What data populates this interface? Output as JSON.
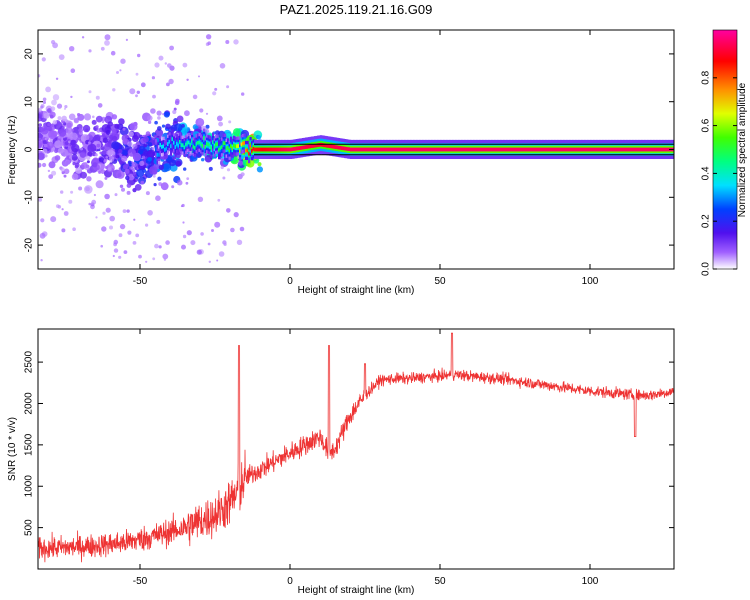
{
  "title": "PAZ1.2025.119.21.16.G09",
  "chart_data": [
    {
      "type": "heatmap",
      "xlabel": "Height of straight line (km)",
      "ylabel": "Frequency (Hz)",
      "xlim": [
        -84,
        128
      ],
      "ylim": [
        -25,
        25
      ],
      "xticks": [
        -50,
        0,
        50,
        100
      ],
      "yticks": [
        -20,
        -10,
        0,
        10,
        20
      ],
      "colorbar": {
        "label": "Normalized spectral amplitude",
        "range": [
          0,
          1
        ],
        "ticks": [
          0.0,
          0.2,
          0.4,
          0.6,
          0.8
        ],
        "colormap": "hsv-rainbow (white-purple-blue-cyan-green-yellow-orange-red-magenta)"
      },
      "ridge": {
        "description": "Dominant signal band centered near 0 Hz; dispersed speckle below -10 km",
        "x": [
          -84,
          -70,
          -60,
          -50,
          -40,
          -30,
          -20,
          -12,
          0,
          10,
          20,
          50,
          100,
          128
        ],
        "center_hz": [
          4,
          0,
          1,
          -2,
          1,
          1,
          0.5,
          0,
          0,
          1,
          0,
          0,
          0,
          0
        ],
        "peak_amplitude": [
          0.1,
          0.12,
          0.15,
          0.2,
          0.3,
          0.4,
          0.45,
          0.85,
          0.95,
          0.9,
          0.95,
          0.95,
          0.95,
          0.95
        ]
      }
    },
    {
      "type": "line",
      "xlabel": "Height of straight line (km)",
      "ylabel": "SNR (10 * v/v)",
      "xlim": [
        -84,
        128
      ],
      "ylim": [
        0,
        2900
      ],
      "xticks": [
        -50,
        0,
        50,
        100
      ],
      "yticks": [
        500,
        1000,
        1500,
        2000,
        2500
      ],
      "color": "#ee3333",
      "series": [
        {
          "x": [
            -84,
            -75,
            -65,
            -55,
            -45,
            -35,
            -25,
            -20,
            -18,
            -15,
            -10,
            -5,
            0,
            5,
            10,
            13,
            15,
            20,
            25,
            30,
            35,
            40,
            45,
            50,
            55,
            60,
            70,
            80,
            90,
            100,
            110,
            115,
            120,
            128
          ],
          "values": [
            250,
            260,
            280,
            320,
            400,
            500,
            650,
            800,
            900,
            1100,
            1200,
            1300,
            1400,
            1500,
            1600,
            1400,
            1450,
            1850,
            2100,
            2280,
            2300,
            2300,
            2320,
            2330,
            2350,
            2330,
            2300,
            2250,
            2200,
            2150,
            2120,
            2100,
            2100,
            2150
          ],
          "spikes": [
            {
              "x": -17,
              "y": 2700
            },
            {
              "x": 13,
              "y": 2700
            },
            {
              "x": 25,
              "y": 2480
            },
            {
              "x": 54,
              "y": 2850
            },
            {
              "x": 115,
              "y": 1600
            }
          ]
        }
      ]
    }
  ]
}
